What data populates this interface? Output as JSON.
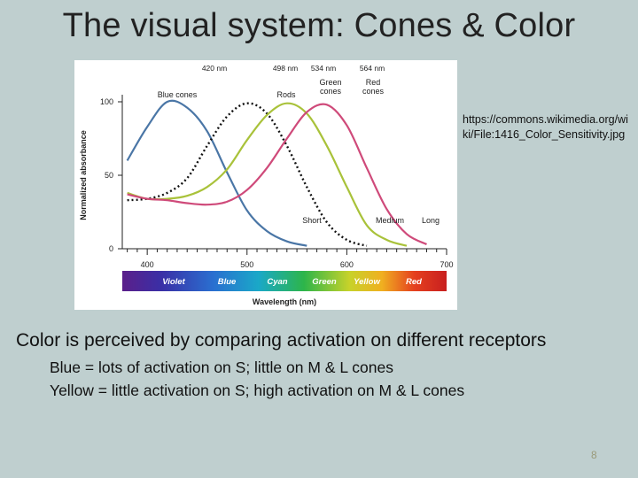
{
  "slide": {
    "title": "The visual system: Cones & Color",
    "credit": "https://commons.wikimedia.org/wiki/File:1416_Color_Sensitivity.jpg",
    "main_text": "Color is perceived by comparing activation on different receptors",
    "bullets": [
      "Blue = lots of activation on S; little on M & L cones",
      "Yellow = little activation on S; high activation on M & L cones"
    ],
    "page_number": "8"
  },
  "chart_data": {
    "type": "line",
    "xlabel": "Wavelength (nm)",
    "ylabel": "Normalized absorbance",
    "xlim": [
      400,
      700
    ],
    "ylim": [
      0,
      100
    ],
    "x_ticks": [
      "400",
      "500",
      "600",
      "700"
    ],
    "y_ticks": [
      "0",
      "50",
      "100"
    ],
    "peak_labels": [
      "420 nm",
      "498 nm",
      "534 nm",
      "564 nm"
    ],
    "band_labels": [
      "Short",
      "Medium",
      "Long"
    ],
    "spectrum_labels": [
      "Violet",
      "Blue",
      "Cyan",
      "Green",
      "Yellow",
      "Red"
    ],
    "series": [
      {
        "name": "Blue cones",
        "color": "#4a76a6",
        "dashed": false,
        "x": [
          380,
          400,
          420,
          440,
          460,
          480,
          500,
          520,
          540,
          560
        ],
        "y": [
          60,
          83,
          100,
          96,
          80,
          52,
          26,
          12,
          5,
          2
        ]
      },
      {
        "name": "Rods",
        "color": "#111111",
        "dashed": true,
        "x": [
          380,
          400,
          420,
          440,
          460,
          480,
          500,
          520,
          540,
          560,
          580,
          600,
          620
        ],
        "y": [
          33,
          34,
          38,
          48,
          70,
          90,
          99,
          92,
          70,
          42,
          18,
          6,
          2
        ]
      },
      {
        "name": "Green cones",
        "color": "#a9c23a",
        "dashed": false,
        "x": [
          380,
          400,
          420,
          440,
          460,
          480,
          500,
          520,
          540,
          560,
          580,
          600,
          620,
          640,
          660
        ],
        "y": [
          38,
          34,
          34,
          36,
          42,
          54,
          74,
          91,
          99,
          92,
          70,
          42,
          16,
          6,
          2
        ]
      },
      {
        "name": "Red cones",
        "color": "#cf4a7a",
        "dashed": false,
        "x": [
          380,
          400,
          420,
          440,
          460,
          480,
          500,
          520,
          540,
          560,
          580,
          600,
          620,
          640,
          660,
          680
        ],
        "y": [
          37,
          34,
          33,
          31,
          30,
          32,
          40,
          55,
          75,
          93,
          98,
          84,
          55,
          27,
          10,
          3
        ]
      }
    ],
    "series_labels": [
      {
        "text": "Blue cones"
      },
      {
        "text": "Rods"
      },
      {
        "text": "Green\ncones"
      },
      {
        "text": "Red\ncones"
      }
    ]
  }
}
